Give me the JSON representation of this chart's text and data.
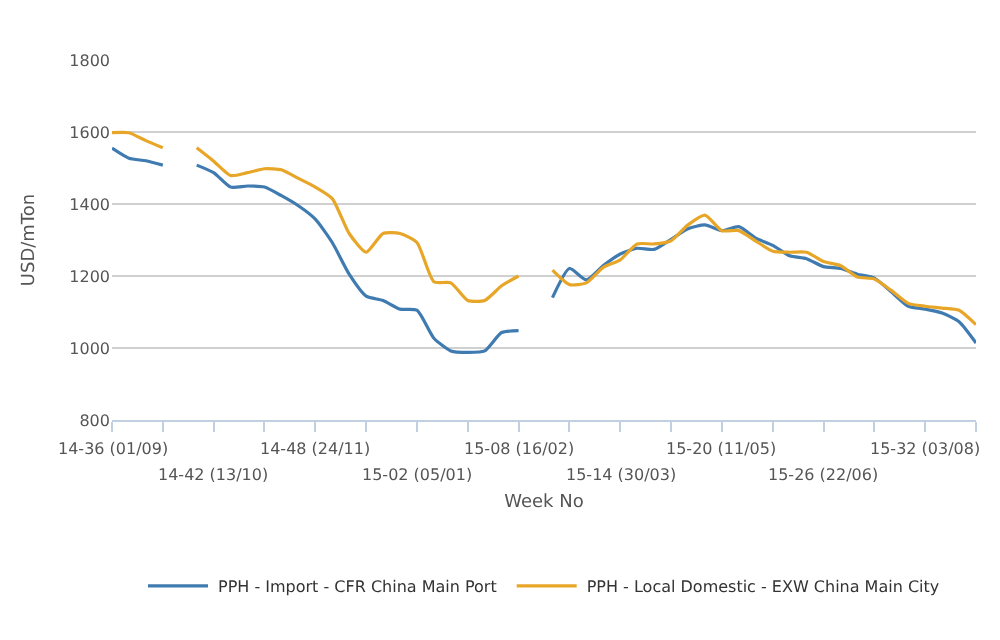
{
  "chart_data": {
    "type": "line",
    "xlabel": "Week No",
    "ylabel": "USD/mTon",
    "categories": [
      "14-36 (01/09)",
      null,
      null,
      null,
      null,
      null,
      "14-42 (13/10)",
      null,
      null,
      null,
      null,
      null,
      "14-48 (24/11)",
      null,
      null,
      null,
      null,
      null,
      "15-02 (05/01)",
      null,
      null,
      null,
      null,
      null,
      "15-08 (16/02)",
      null,
      null,
      null,
      null,
      null,
      "15-14 (30/03)",
      null,
      null,
      null,
      null,
      null,
      "15-20 (11/05)",
      null,
      null,
      null,
      null,
      null,
      "15-26 (22/06)",
      null,
      null,
      null,
      null,
      null,
      "15-32 (03/08)",
      null,
      null,
      null
    ],
    "series": [
      {
        "name": "PPH - Import - CFR China Main Port",
        "color": "#3f7bb0",
        "values": [
          1555,
          1527,
          1520,
          1508,
          null,
          1508,
          1487,
          1447,
          1450,
          1447,
          1423,
          1395,
          1358,
          1293,
          1205,
          1144,
          1132,
          1108,
          1105,
          1027,
          992,
          988,
          992,
          1043,
          1048,
          null,
          1140,
          1221,
          1189,
          1229,
          1261,
          1277,
          1274,
          1302,
          1331,
          1342,
          1326,
          1337,
          1305,
          1285,
          1256,
          1248,
          1226,
          1221,
          1205,
          1194,
          1156,
          1116,
          1108,
          1097,
          1073,
          1014
        ]
      },
      {
        "name": "PPH - Local Domestic - EXW China Main City",
        "color": "#e8a628",
        "values": [
          1598,
          1598,
          1576,
          1556,
          null,
          1556,
          1519,
          1479,
          1487,
          1498,
          1495,
          1471,
          1447,
          1415,
          1318,
          1266,
          1318,
          1318,
          1293,
          1184,
          1181,
          1132,
          1132,
          1173,
          1200,
          null,
          1216,
          1176,
          1181,
          1224,
          1245,
          1289,
          1289,
          1298,
          1342,
          1369,
          1326,
          1326,
          1297,
          1269,
          1266,
          1266,
          1240,
          1229,
          1197,
          1192,
          1160,
          1124,
          1116,
          1111,
          1105,
          1065
        ]
      }
    ],
    "ylim": [
      800,
      1800
    ],
    "yticks": [
      800,
      1000,
      1200,
      1400,
      1600,
      1800
    ],
    "grid": "y",
    "legend": "bottom",
    "marker": "none",
    "line_style": "solid"
  }
}
